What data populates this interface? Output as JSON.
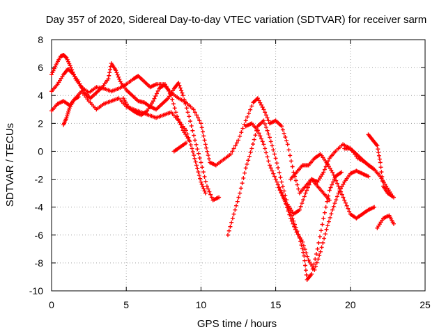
{
  "chart_data": {
    "type": "scatter",
    "title": "Day 357 of 2020, Sidereal Day-to-day VTEC variation (SDTVAR) for receiver sarm",
    "xlabel": "GPS time / hours",
    "ylabel": "SDTVAR / TECUs",
    "xlim": [
      0,
      25
    ],
    "ylim": [
      -10,
      8
    ],
    "x_ticks": [
      0,
      5,
      10,
      15,
      20,
      25
    ],
    "y_ticks": [
      -10,
      -8,
      -6,
      -4,
      -2,
      0,
      2,
      4,
      6,
      8
    ],
    "grid": true,
    "marker": "plus",
    "color": "#ff0000",
    "series": [
      {
        "points": [
          [
            0,
            5.5
          ],
          [
            0.3,
            6.2
          ],
          [
            0.6,
            6.8
          ],
          [
            0.8,
            6.9
          ],
          [
            1.0,
            6.7
          ],
          [
            1.3,
            6.0
          ],
          [
            1.6,
            5.2
          ],
          [
            2.0,
            4.6
          ],
          [
            2.5,
            4.2
          ],
          [
            3.0,
            4.6
          ],
          [
            3.5,
            4.5
          ],
          [
            4.0,
            4.3
          ],
          [
            4.5,
            4.5
          ],
          [
            5.0,
            4.8
          ],
          [
            5.5,
            5.2
          ],
          [
            5.8,
            5.4
          ],
          [
            6.2,
            5.0
          ],
          [
            6.6,
            4.6
          ],
          [
            7.0,
            4.8
          ],
          [
            7.5,
            4.8
          ],
          [
            8.0,
            4.2
          ],
          [
            8.5,
            3.8
          ],
          [
            9.0,
            3.5
          ],
          [
            9.5,
            3.0
          ],
          [
            10.0,
            2.0
          ],
          [
            10.3,
            0.5
          ],
          [
            10.6,
            -0.8
          ],
          [
            11.0,
            -1.0
          ],
          [
            11.5,
            -0.6
          ],
          [
            12.0,
            -0.2
          ],
          [
            12.5,
            0.8
          ],
          [
            13.0,
            2.2
          ],
          [
            13.5,
            3.5
          ],
          [
            13.8,
            3.8
          ],
          [
            14.2,
            3.0
          ],
          [
            14.6,
            2.0
          ],
          [
            15.0,
            2.2
          ],
          [
            15.4,
            1.8
          ],
          [
            15.8,
            0.5
          ],
          [
            16.2,
            -1.5
          ],
          [
            16.6,
            -3.0
          ],
          [
            17.0,
            -2.5
          ],
          [
            17.4,
            -2.0
          ],
          [
            17.8,
            -2.2
          ],
          [
            18.2,
            -1.5
          ],
          [
            18.6,
            -0.5
          ],
          [
            19.0,
            0.0
          ],
          [
            19.5,
            0.5
          ],
          [
            20.0,
            0.2
          ],
          [
            20.5,
            -0.5
          ],
          [
            21.0,
            -0.8
          ],
          [
            21.5,
            -1.2
          ]
        ]
      },
      {
        "points": [
          [
            0,
            4.3
          ],
          [
            0.4,
            4.8
          ],
          [
            0.8,
            5.5
          ],
          [
            1.1,
            5.9
          ],
          [
            1.4,
            5.6
          ],
          [
            1.8,
            5.0
          ],
          [
            2.2,
            4.2
          ],
          [
            2.6,
            3.8
          ],
          [
            3.0,
            4.2
          ],
          [
            3.4,
            4.6
          ],
          [
            3.8,
            5.2
          ],
          [
            4.0,
            6.3
          ],
          [
            4.3,
            5.8
          ],
          [
            4.6,
            5.0
          ],
          [
            5.0,
            4.4
          ],
          [
            5.4,
            4.0
          ],
          [
            5.8,
            3.6
          ],
          [
            6.2,
            3.5
          ],
          [
            6.6,
            3.2
          ],
          [
            7.0,
            3.0
          ],
          [
            7.4,
            3.4
          ],
          [
            7.8,
            3.8
          ],
          [
            8.2,
            4.5
          ],
          [
            8.5,
            4.9
          ],
          [
            8.8,
            4.0
          ],
          [
            9.2,
            2.5
          ],
          [
            9.6,
            0.8
          ],
          [
            10.0,
            -0.8
          ],
          [
            10.4,
            -2.5
          ],
          [
            10.8,
            -3.5
          ],
          [
            11.2,
            -3.3
          ]
        ]
      },
      {
        "points": [
          [
            0,
            2.9
          ],
          [
            0.4,
            3.4
          ],
          [
            0.8,
            3.6
          ],
          [
            1.2,
            3.3
          ],
          [
            1.6,
            3.8
          ],
          [
            2.0,
            4.3
          ],
          [
            2.5,
            3.6
          ],
          [
            3.0,
            3.0
          ],
          [
            3.5,
            3.4
          ],
          [
            4.0,
            3.6
          ],
          [
            4.5,
            3.8
          ],
          [
            5.0,
            3.2
          ],
          [
            5.5,
            3.0
          ],
          [
            6.0,
            2.8
          ],
          [
            6.5,
            2.6
          ],
          [
            7.0,
            2.4
          ],
          [
            7.5,
            2.6
          ],
          [
            8.0,
            2.8
          ],
          [
            8.5,
            2.2
          ],
          [
            9.0,
            1.5
          ],
          [
            9.4,
            0.2
          ],
          [
            9.7,
            -1.0
          ],
          [
            10.0,
            -2.2
          ],
          [
            10.3,
            -3.0
          ]
        ]
      },
      {
        "points": [
          [
            0.8,
            1.9
          ],
          [
            1.0,
            2.4
          ],
          [
            1.2,
            3.1
          ],
          [
            1.5,
            3.7
          ],
          [
            1.8,
            3.9
          ]
        ]
      },
      {
        "points": [
          [
            4.8,
            3.8
          ],
          [
            5.2,
            3.1
          ],
          [
            5.6,
            2.8
          ],
          [
            6.0,
            2.6
          ],
          [
            6.4,
            2.9
          ],
          [
            6.8,
            3.6
          ],
          [
            7.2,
            4.5
          ],
          [
            7.6,
            4.8
          ],
          [
            8.0,
            4.0
          ],
          [
            8.4,
            2.5
          ],
          [
            8.8,
            1.5
          ],
          [
            9.2,
            0.8
          ]
        ]
      },
      {
        "points": [
          [
            8.2,
            0.0
          ],
          [
            8.6,
            0.3
          ],
          [
            9.0,
            0.6
          ]
        ]
      },
      {
        "points": [
          [
            11.8,
            -6.0
          ],
          [
            12.2,
            -4.5
          ],
          [
            12.6,
            -3.0
          ],
          [
            13.0,
            -1.2
          ],
          [
            13.4,
            0.2
          ],
          [
            13.8,
            1.8
          ],
          [
            14.2,
            2.2
          ],
          [
            14.6,
            1.0
          ],
          [
            15.0,
            -0.5
          ],
          [
            15.4,
            -2.2
          ],
          [
            15.8,
            -3.8
          ],
          [
            16.2,
            -4.5
          ],
          [
            16.6,
            -4.2
          ],
          [
            17.0,
            -3.0
          ],
          [
            17.4,
            -2.0
          ],
          [
            17.8,
            -2.5
          ],
          [
            18.2,
            -3.0
          ],
          [
            18.6,
            -3.5
          ]
        ]
      },
      {
        "points": [
          [
            13.0,
            1.8
          ],
          [
            13.4,
            2.0
          ],
          [
            13.8,
            1.5
          ],
          [
            14.2,
            0.5
          ],
          [
            14.6,
            -1.0
          ],
          [
            15.0,
            -2.0
          ],
          [
            15.4,
            -3.0
          ],
          [
            15.8,
            -4.0
          ],
          [
            16.2,
            -5.0
          ],
          [
            16.6,
            -6.2
          ],
          [
            16.9,
            -7.5
          ],
          [
            17.1,
            -9.2
          ],
          [
            17.4,
            -8.8
          ],
          [
            17.8,
            -7.0
          ],
          [
            18.2,
            -4.8
          ],
          [
            18.6,
            -2.8
          ],
          [
            19.0,
            -1.8
          ],
          [
            19.4,
            -1.5
          ]
        ]
      },
      {
        "points": [
          [
            15.2,
            -2.6
          ],
          [
            15.6,
            -3.5
          ],
          [
            16.0,
            -4.8
          ],
          [
            16.4,
            -5.8
          ],
          [
            16.8,
            -6.5
          ],
          [
            17.2,
            -7.8
          ],
          [
            17.6,
            -8.5
          ],
          [
            18.0,
            -7.2
          ],
          [
            18.4,
            -5.6
          ],
          [
            18.8,
            -4.2
          ],
          [
            19.2,
            -3.0
          ],
          [
            19.6,
            -2.2
          ],
          [
            20.0,
            -1.6
          ],
          [
            20.4,
            -1.4
          ],
          [
            20.8,
            -1.6
          ],
          [
            21.2,
            -1.8
          ]
        ]
      },
      {
        "points": [
          [
            16.0,
            -2.0
          ],
          [
            16.4,
            -1.5
          ],
          [
            16.8,
            -1.0
          ],
          [
            17.2,
            -1.0
          ],
          [
            17.6,
            -0.5
          ],
          [
            18.0,
            -0.2
          ],
          [
            18.4,
            -0.8
          ],
          [
            18.8,
            -1.5
          ],
          [
            19.2,
            -2.5
          ],
          [
            19.6,
            -3.5
          ],
          [
            20.0,
            -4.5
          ],
          [
            20.4,
            -4.8
          ],
          [
            20.8,
            -4.5
          ],
          [
            21.2,
            -4.2
          ],
          [
            21.6,
            -4.0
          ]
        ]
      },
      {
        "points": [
          [
            19.6,
            0.2
          ],
          [
            20.0,
            0.2
          ],
          [
            20.4,
            -0.2
          ],
          [
            20.8,
            -0.6
          ],
          [
            21.2,
            -1.0
          ],
          [
            21.6,
            -1.3
          ],
          [
            22.0,
            -1.8
          ],
          [
            22.4,
            -2.5
          ],
          [
            22.8,
            -3.2
          ]
        ]
      },
      {
        "points": [
          [
            21.2,
            1.2
          ],
          [
            21.5,
            0.8
          ],
          [
            21.8,
            0.4
          ],
          [
            22.0,
            -0.8
          ],
          [
            22.2,
            -2.5
          ],
          [
            22.5,
            -3.0
          ],
          [
            22.9,
            -3.3
          ]
        ]
      },
      {
        "points": [
          [
            21.8,
            -5.5
          ],
          [
            22.2,
            -4.8
          ],
          [
            22.6,
            -4.6
          ],
          [
            22.9,
            -5.2
          ]
        ]
      }
    ]
  }
}
